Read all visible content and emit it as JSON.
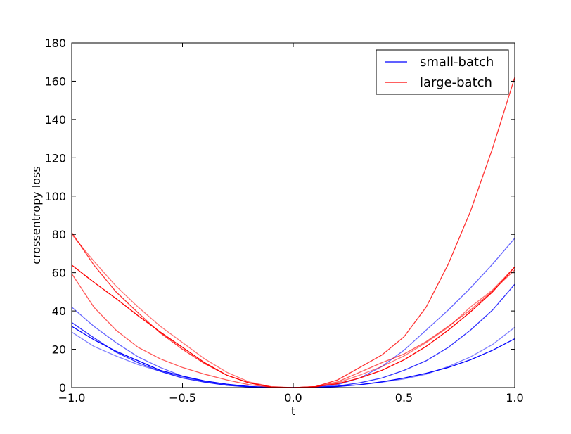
{
  "chart_data": {
    "type": "line",
    "title": "",
    "xlabel": "t",
    "ylabel": "crossentropy loss",
    "xlim": [
      -1.0,
      1.0
    ],
    "ylim": [
      0,
      180
    ],
    "xticks": [
      -1.0,
      -0.5,
      0.0,
      0.5,
      1.0
    ],
    "xtick_labels": [
      "−1.0",
      "−0.5",
      "0.0",
      "0.5",
      "1.0"
    ],
    "yticks": [
      0,
      20,
      40,
      60,
      80,
      100,
      120,
      140,
      160,
      180
    ],
    "ytick_labels": [
      "0",
      "20",
      "40",
      "60",
      "80",
      "100",
      "120",
      "140",
      "160",
      "180"
    ],
    "grid": false,
    "legend_position": "top-right",
    "legend": [
      {
        "label": "small-batch",
        "color": "#0000ff"
      },
      {
        "label": "large-batch",
        "color": "#ff0000"
      }
    ],
    "x": [
      -1.0,
      -0.9,
      -0.8,
      -0.7,
      -0.6,
      -0.5,
      -0.4,
      -0.3,
      -0.2,
      -0.1,
      0.0,
      0.1,
      0.2,
      0.3,
      0.4,
      0.5,
      0.6,
      0.7,
      0.8,
      0.9,
      1.0
    ],
    "series": [
      {
        "group": "small-batch",
        "color": "#0000ff",
        "opacity": 1.0,
        "values": [
          32,
          25,
          19,
          14,
          9,
          6,
          3.5,
          1.8,
          0.6,
          0.1,
          0,
          0.1,
          0.6,
          1.5,
          3,
          5,
          7.5,
          10.5,
          14.5,
          19.5,
          25.5
        ]
      },
      {
        "group": "small-batch",
        "color": "#0000ff",
        "opacity": 0.8,
        "values": [
          34,
          26,
          18.5,
          13,
          8.5,
          5,
          2.8,
          1.2,
          0.4,
          0.05,
          0,
          0.1,
          0.8,
          2.5,
          5,
          9,
          14,
          21,
          30,
          40.5,
          54
        ]
      },
      {
        "group": "small-batch",
        "color": "#0000ff",
        "opacity": 0.6,
        "values": [
          42,
          32,
          23.5,
          16,
          10.5,
          6,
          3,
          1.2,
          0.3,
          0.05,
          0,
          0.1,
          1.5,
          5,
          11,
          19.5,
          30,
          40.5,
          52,
          64.5,
          78
        ]
      },
      {
        "group": "small-batch",
        "color": "#0000ff",
        "opacity": 0.5,
        "values": [
          29,
          21.5,
          16.5,
          12,
          8.5,
          5.5,
          3.2,
          1.5,
          0.5,
          0.05,
          0,
          0.1,
          0.5,
          1.5,
          2.8,
          4.5,
          7,
          11,
          16,
          22.5,
          31.5
        ]
      },
      {
        "group": "large-batch",
        "color": "#ff0000",
        "opacity": 1.0,
        "values": [
          64,
          55,
          46.5,
          37.5,
          29,
          21,
          13,
          6.5,
          2.5,
          0.3,
          0,
          0.5,
          2,
          5,
          9,
          14.5,
          21.5,
          30,
          39.5,
          50,
          63
        ]
      },
      {
        "group": "large-batch",
        "color": "#ff0000",
        "opacity": 0.8,
        "values": [
          81,
          64,
          50,
          39,
          28.5,
          20,
          12.5,
          6.5,
          2.5,
          0.3,
          0,
          0.5,
          4,
          10.5,
          17,
          26.5,
          42,
          64.5,
          92,
          125,
          162
        ]
      },
      {
        "group": "large-batch",
        "color": "#ff0000",
        "opacity": 0.65,
        "values": [
          59.5,
          42,
          30,
          21,
          15,
          10.5,
          7,
          4,
          1.5,
          0.2,
          0,
          0.5,
          3,
          8,
          13,
          17.5,
          24,
          32,
          40.5,
          50.5,
          61.5
        ]
      },
      {
        "group": "large-batch",
        "color": "#ff0000",
        "opacity": 0.55,
        "values": [
          80,
          66,
          53,
          42,
          32,
          23.5,
          15,
          8,
          3,
          0.5,
          0,
          0.3,
          2.5,
          6.5,
          11,
          16.5,
          23.5,
          31.5,
          42,
          51,
          63
        ]
      }
    ]
  }
}
